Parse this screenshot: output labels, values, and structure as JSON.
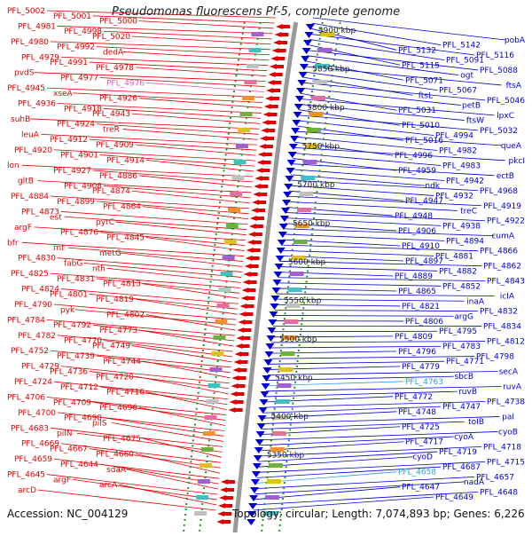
{
  "title": "Pseudomonas fluorescens Pf-5, complete genome",
  "footer": {
    "accession": "Accession: NC_004129",
    "summary": "Topology: circular; Length: 7,074,893 bp; Genes: 6,226"
  },
  "colors": {
    "left_strand": "#e00000",
    "right_strand": "#0000d0",
    "highlight": "#2aa0dc",
    "pink": "#e060c0",
    "ring_dots": "#2a8a2a",
    "backbone": "#999999"
  },
  "kbp_markers": [
    "5900 kbp",
    "5850 kbp",
    "5800 kbp",
    "5750 kbp",
    "5700 kbp",
    "5650 kbp",
    "5600 kbp",
    "5550 kbp",
    "5500 kbp",
    "5450 kbp",
    "5400 kbp",
    "5350 kbp"
  ],
  "left_labels": [
    "PFL_5002",
    "PFL_5001",
    "PFL_5000",
    "PFL_4981",
    "PFL_4998",
    "PFL_5020",
    "PFL_4980",
    "PFL_4992",
    "dedA",
    "PFL_4979",
    "PFL_4991",
    "PFL_4978",
    "pvdS",
    "PFL_4977",
    "PFL_4976",
    "PFL_4945",
    "xseA",
    "PFL_4926",
    "PFL_4936",
    "PFL_4918",
    "PFL_4943",
    "suhB",
    "PFL_4924",
    "treR",
    "leuA",
    "PFL_4912",
    "PFL_4909",
    "PFL_4920",
    "PFL_4901",
    "PFL_4914",
    "lon",
    "PFL_4927",
    "PFL_4886",
    "gltB",
    "PFL_4908",
    "PFL_4874",
    "PFL_4884",
    "PFL_4899",
    "PFL_4864",
    "PFL_4873",
    "est",
    "pyrC",
    "argF",
    "PFL_4876",
    "PFL_4845",
    "bfr",
    "rnt",
    "metG",
    "PFL_4830",
    "fabG",
    "nth",
    "PFL_4825",
    "PFL_4831",
    "PFL_4813",
    "PFL_4824",
    "PFL_4801",
    "PFL_4819",
    "PFL_4790",
    "pyk",
    "PFL_4802",
    "PFL_4784",
    "PFL_4792",
    "PFL_4773",
    "PFL_4782",
    "PFL_4770",
    "PFL_4749",
    "PFL_4752",
    "PFL_4739",
    "PFL_4744",
    "PFL_4729",
    "PFL_4736",
    "PFL_4720",
    "PFL_4724",
    "PFL_4712",
    "PFL_4716",
    "PFL_4706",
    "PFL_4709",
    "PFL_4696",
    "PFL_4700",
    "PFL_4690",
    "pilS",
    "PFL_4683",
    "pilN",
    "PFL_4675",
    "PFL_4669",
    "PFL_4667",
    "PFL_4660",
    "PFL_4659",
    "PFL_4644",
    "sdaA",
    "PFL_4645",
    "argF",
    "arcA",
    "arcD"
  ],
  "right_labels": [
    "pobA",
    "PFL_5142",
    "PFL_5132",
    "PFL_5116",
    "PFL_5091",
    "PFL_5115",
    "PFL_5088",
    "ogt",
    "PFL_5071",
    "ftsA",
    "PFL_5067",
    "ftsL",
    "PFL_5046",
    "petB",
    "PFL_5031",
    "lpxC",
    "ftsW",
    "PFL_5010",
    "PFL_5032",
    "PFL_4994",
    "PFL_5016",
    "queA",
    "PFL_4982",
    "PFL_4996",
    "pkcI",
    "PFL_4983",
    "PFL_4959",
    "ectB",
    "PFL_4942",
    "ndk",
    "PFL_4968",
    "PFL_4932",
    "PFL_4947",
    "PFL_4919",
    "treC",
    "PFL_4948",
    "PFL_4922",
    "PFL_4938",
    "PFL_4906",
    "cumA",
    "PFL_4894",
    "PFL_4910",
    "PFL_4866",
    "PFL_4881",
    "PFL_4897",
    "PFL_4862",
    "PFL_4882",
    "PFL_4889",
    "PFL_4843",
    "PFL_4852",
    "PFL_4865",
    "icIA",
    "inaA",
    "PFL_4821",
    "PFL_4832",
    "argG",
    "PFL_4806",
    "PFL_4834",
    "PFL_4795",
    "PFL_4809",
    "PFL_4812",
    "PFL_4783",
    "PFL_4796",
    "PFL_4798",
    "PFL_4771",
    "PFL_4779",
    "secA",
    "sbcB",
    "PFL_4763",
    "ruvA",
    "ruvB",
    "PFL_4772",
    "PFL_4738",
    "PFL_4747",
    "PFL_4748",
    "paI",
    "toIB",
    "PFL_4725",
    "cyoB",
    "cyoA",
    "PFL_4717",
    "PFL_4718",
    "PFL_4719",
    "cyoD",
    "PFL_4715",
    "PFL_4687",
    "PFL_4658",
    "PFL_4657",
    "nadA",
    "PFL_4647",
    "PFL_4648",
    "PFL_4649"
  ]
}
